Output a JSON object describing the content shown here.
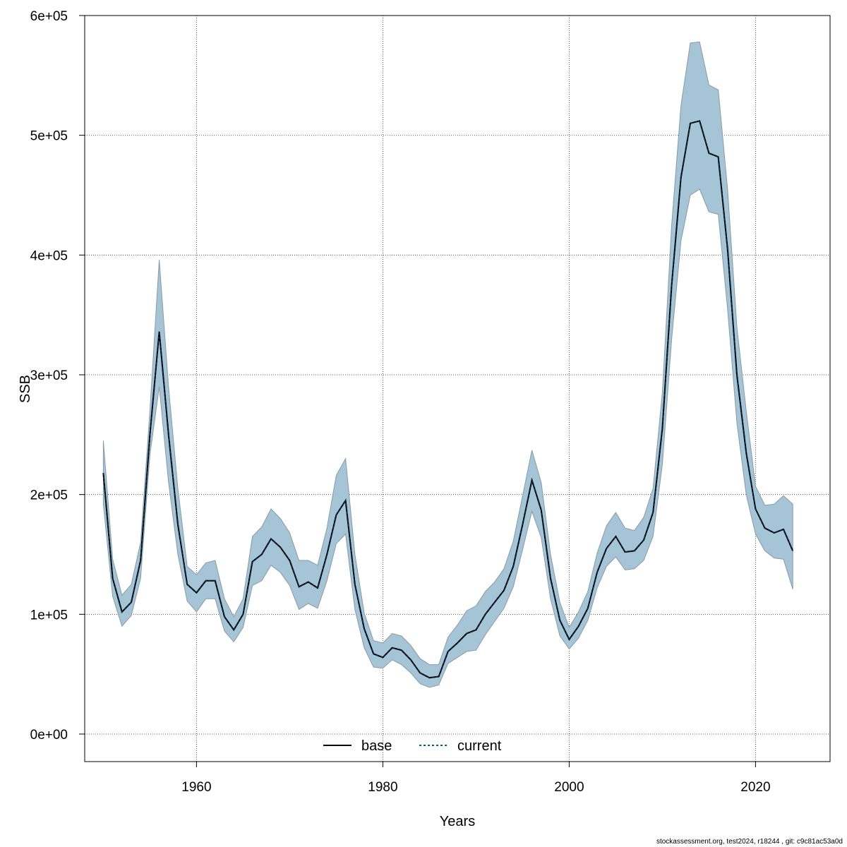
{
  "footer_text": "stockassessment.org, test2024, r18244 , git: c9c81ac53a0d",
  "chart_data": {
    "type": "line",
    "xlabel": "Years",
    "ylabel": "SSB",
    "xlim": [
      1948,
      2028
    ],
    "ylim": [
      -23000,
      600000
    ],
    "x_ticks": [
      1960,
      1980,
      2000,
      2020
    ],
    "y_ticks": [
      0,
      100000,
      200000,
      300000,
      400000,
      500000,
      600000
    ],
    "y_tick_labels": [
      "0e+00",
      "1e+05",
      "2e+05",
      "3e+05",
      "4e+05",
      "5e+05",
      "6e+05"
    ],
    "grid": true,
    "colors": {
      "band": "#a5c4d6",
      "band_edge": "#8a9aa6",
      "base": "#000000",
      "current": "#0a5a8c",
      "grid": "#555555"
    },
    "legend": {
      "position": "bottom-center",
      "entries": [
        {
          "label": "base",
          "style": "solid",
          "color": "#000000"
        },
        {
          "label": "current",
          "style": "dashed",
          "color": "#0a5a8c"
        }
      ]
    },
    "x": [
      1950,
      1951,
      1952,
      1953,
      1954,
      1955,
      1956,
      1957,
      1958,
      1959,
      1960,
      1961,
      1962,
      1963,
      1964,
      1965,
      1966,
      1967,
      1968,
      1969,
      1970,
      1971,
      1972,
      1973,
      1974,
      1975,
      1976,
      1977,
      1978,
      1979,
      1980,
      1981,
      1982,
      1983,
      1984,
      1985,
      1986,
      1987,
      1988,
      1989,
      1990,
      1991,
      1992,
      1993,
      1994,
      1995,
      1996,
      1997,
      1998,
      1999,
      2000,
      2001,
      2002,
      2003,
      2004,
      2005,
      2006,
      2007,
      2008,
      2009,
      2010,
      2011,
      2012,
      2013,
      2014,
      2015,
      2016,
      2017,
      2018,
      2019,
      2020,
      2021,
      2022,
      2023,
      2024
    ],
    "series": [
      {
        "name": "base",
        "values": [
          218000,
          130000,
          102000,
          110000,
          145000,
          250000,
          336000,
          250000,
          175000,
          125000,
          118000,
          128000,
          128000,
          98000,
          87000,
          100000,
          144000,
          150000,
          163000,
          156000,
          145000,
          123000,
          127000,
          122000,
          150000,
          183000,
          195000,
          125000,
          88000,
          67000,
          64000,
          72000,
          70000,
          62000,
          51000,
          47000,
          48000,
          69000,
          76000,
          84000,
          87000,
          100000,
          110000,
          120000,
          140000,
          175000,
          212000,
          187000,
          130000,
          95000,
          79000,
          90000,
          105000,
          135000,
          155000,
          165000,
          152000,
          153000,
          162000,
          185000,
          255000,
          375000,
          465000,
          510000,
          512000,
          485000,
          482000,
          405000,
          300000,
          235000,
          188000,
          172000,
          168000,
          171000,
          153000
        ]
      },
      {
        "name": "current",
        "values": [
          218000,
          130000,
          102000,
          110000,
          145000,
          250000,
          336000,
          250000,
          175000,
          125000,
          118000,
          128000,
          128000,
          98000,
          87000,
          100000,
          144000,
          150000,
          163000,
          156000,
          145000,
          123000,
          127000,
          122000,
          150000,
          183000,
          195000,
          125000,
          88000,
          67000,
          64000,
          72000,
          70000,
          62000,
          51000,
          47000,
          48000,
          69000,
          76000,
          84000,
          87000,
          100000,
          110000,
          120000,
          140000,
          175000,
          212000,
          187000,
          130000,
          95000,
          79000,
          90000,
          105000,
          135000,
          155000,
          165000,
          152000,
          153000,
          162000,
          185000,
          255000,
          375000,
          465000,
          510000,
          512000,
          485000,
          482000,
          405000,
          300000,
          235000,
          188000,
          172000,
          168000,
          171000,
          153000
        ]
      }
    ],
    "band": {
      "lower": [
        192000,
        115000,
        90000,
        99000,
        130000,
        233000,
        290000,
        210000,
        150000,
        111000,
        102000,
        113000,
        113000,
        86000,
        77000,
        89000,
        124000,
        128000,
        141000,
        135000,
        124000,
        104000,
        109000,
        105000,
        128000,
        159000,
        167000,
        104000,
        72000,
        56000,
        55000,
        62000,
        58000,
        51000,
        42000,
        39000,
        41000,
        59000,
        64000,
        69000,
        70000,
        83000,
        94000,
        105000,
        123000,
        154000,
        186000,
        164000,
        113000,
        82000,
        71000,
        80000,
        95000,
        122000,
        140000,
        148000,
        137000,
        138000,
        145000,
        165000,
        225000,
        330000,
        412000,
        450000,
        455000,
        436000,
        434000,
        355000,
        260000,
        200000,
        167000,
        153000,
        147000,
        146000,
        121000
      ],
      "upper": [
        245000,
        146000,
        116000,
        125000,
        160000,
        270000,
        396000,
        290000,
        205000,
        140000,
        133000,
        143000,
        145000,
        113000,
        98000,
        113000,
        165000,
        173000,
        188000,
        180000,
        168000,
        145000,
        145000,
        141000,
        172000,
        216000,
        230000,
        150000,
        101000,
        78000,
        76000,
        84000,
        82000,
        74000,
        63000,
        58000,
        58000,
        81000,
        91000,
        103000,
        107000,
        119000,
        127000,
        138000,
        161000,
        199000,
        237000,
        210000,
        150000,
        110000,
        89000,
        102000,
        119000,
        151000,
        174000,
        185000,
        172000,
        170000,
        181000,
        205000,
        285000,
        425000,
        525000,
        577000,
        578000,
        542000,
        538000,
        455000,
        340000,
        270000,
        207000,
        191000,
        192000,
        199000,
        192000
      ]
    }
  }
}
